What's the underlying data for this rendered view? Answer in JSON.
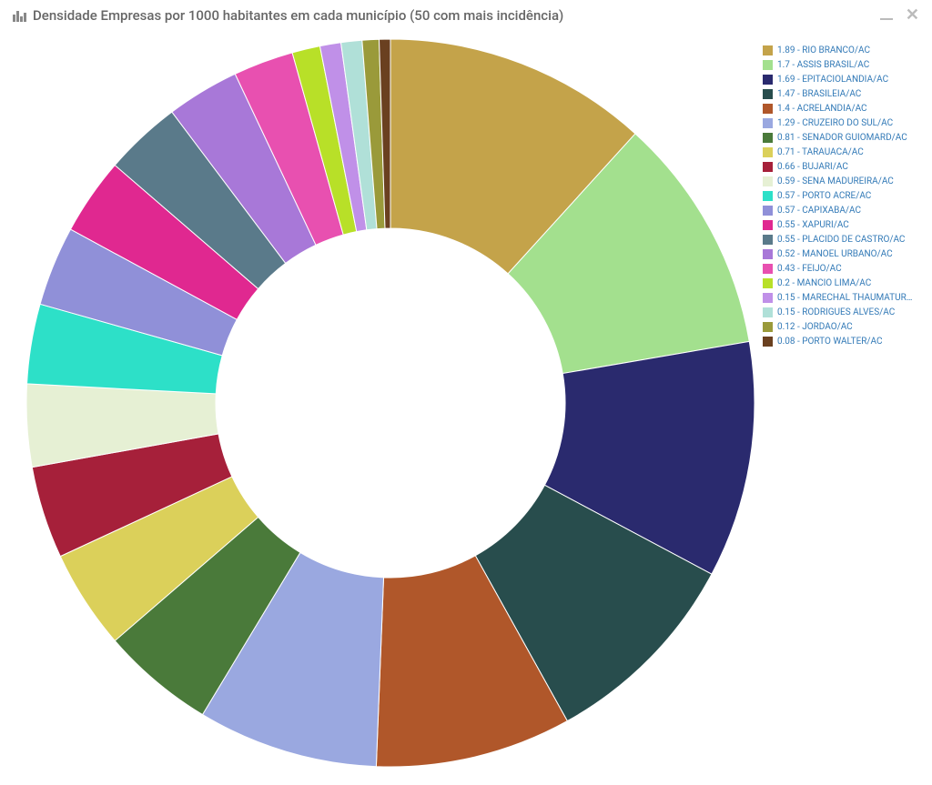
{
  "panel": {
    "title": "Densidade Empresas por 1000 habitantes em cada município (50 com mais incidência)"
  },
  "chart": {
    "type": "donut",
    "inner_radius_ratio": 0.48,
    "outer_radius_ratio": 1.0,
    "background_color": "#ffffff",
    "legend_text_color": "#337ab7",
    "title_color": "#666666",
    "legend_fontsize": 10,
    "title_fontsize": 15,
    "start_angle_deg": -90,
    "slices": [
      {
        "value": 1.89,
        "label": "RIO BRANCO/AC",
        "color": "#c4a34a"
      },
      {
        "value": 1.7,
        "label": "ASSIS BRASIL/AC",
        "color": "#a3e08e"
      },
      {
        "value": 1.69,
        "label": "EPITACIOLANDIA/AC",
        "color": "#2a2a6e"
      },
      {
        "value": 1.47,
        "label": "BRASILEIA/AC",
        "color": "#284d4d"
      },
      {
        "value": 1.4,
        "label": "ACRELANDIA/AC",
        "color": "#b0572a"
      },
      {
        "value": 1.29,
        "label": "CRUZEIRO DO SUL/AC",
        "color": "#9aa8e0"
      },
      {
        "value": 0.81,
        "label": "SENADOR GUIOMARD/AC",
        "color": "#4a7a3a"
      },
      {
        "value": 0.71,
        "label": "TARAUACA/AC",
        "color": "#dbd05a"
      },
      {
        "value": 0.66,
        "label": "BUJARI/AC",
        "color": "#a6203a"
      },
      {
        "value": 0.59,
        "label": "SENA MADUREIRA/AC",
        "color": "#e6f0d4"
      },
      {
        "value": 0.57,
        "label": "PORTO ACRE/AC",
        "color": "#2de0c8"
      },
      {
        "value": 0.57,
        "label": "CAPIXABA/AC",
        "color": "#9090d8"
      },
      {
        "value": 0.55,
        "label": "XAPURI/AC",
        "color": "#e02890"
      },
      {
        "value": 0.55,
        "label": "PLACIDO DE CASTRO/AC",
        "color": "#5a7a8a"
      },
      {
        "value": 0.52,
        "label": "MANOEL URBANO/AC",
        "color": "#a878d8"
      },
      {
        "value": 0.43,
        "label": "FEIJO/AC",
        "color": "#e850b0"
      },
      {
        "value": 0.2,
        "label": "MANCIO LIMA/AC",
        "color": "#b8e028"
      },
      {
        "value": 0.15,
        "label": "MARECHAL THAUMATURGO/AC",
        "color": "#c090e8"
      },
      {
        "value": 0.15,
        "label": "RODRIGUES ALVES/AC",
        "color": "#b0e0d8"
      },
      {
        "value": 0.12,
        "label": "JORDAO/AC",
        "color": "#9a9a3a"
      },
      {
        "value": 0.08,
        "label": "PORTO WALTER/AC",
        "color": "#6a4020"
      }
    ]
  }
}
